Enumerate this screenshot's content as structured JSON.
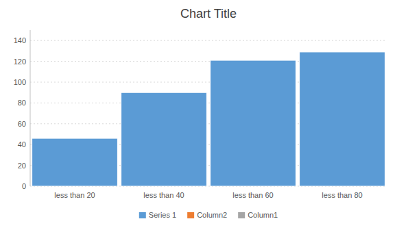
{
  "chart_data": {
    "type": "bar",
    "title": "Chart Title",
    "categories": [
      "less than 20",
      "less than 40",
      "less than 60",
      "less than 80"
    ],
    "series": [
      {
        "name": "Series 1",
        "color": "#5b9bd5",
        "values": [
          46,
          90,
          121,
          129
        ]
      },
      {
        "name": "Column2",
        "color": "#ed7d31",
        "values": [
          null,
          null,
          null,
          null
        ]
      },
      {
        "name": "Column1",
        "color": "#a5a5a5",
        "values": [
          null,
          null,
          null,
          null
        ]
      }
    ],
    "ylim": [
      0,
      150
    ],
    "yticks": [
      0,
      20,
      40,
      60,
      80,
      100,
      120,
      140
    ],
    "grid": true,
    "legend": "bottom"
  }
}
